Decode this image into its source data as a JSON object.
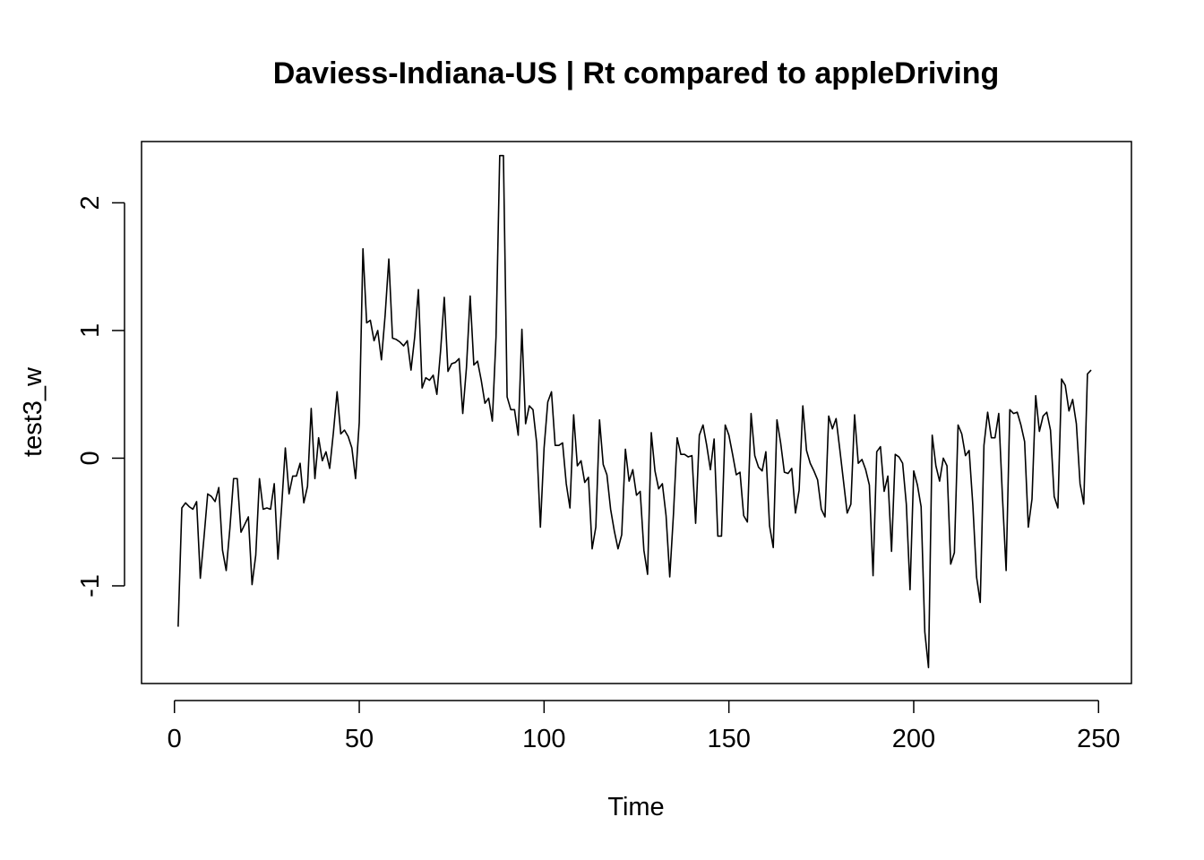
{
  "chart_data": {
    "type": "line",
    "title": "Daviess-Indiana-US | Rt compared to appleDriving",
    "xlabel": "Time",
    "ylabel": "test3_w",
    "xlim": [
      -8.9,
      258.9
    ],
    "ylim": [
      -1.765,
      2.48
    ],
    "xticks": [
      0,
      50,
      100,
      150,
      200,
      250
    ],
    "xtick_labels": [
      "0",
      "50",
      "100",
      "150",
      "200",
      "250"
    ],
    "yticks": [
      -1,
      0,
      1,
      2
    ],
    "ytick_labels": [
      "-1",
      "0",
      "1",
      "2"
    ],
    "grid": false,
    "line_color": "#000000",
    "series": [
      {
        "x_start": 1,
        "values": [
          -1.32,
          -0.39,
          -0.35,
          -0.38,
          -0.4,
          -0.34,
          -0.94,
          -0.62,
          -0.28,
          -0.3,
          -0.34,
          -0.23,
          -0.72,
          -0.88,
          -0.55,
          -0.16,
          -0.16,
          -0.58,
          -0.52,
          -0.46,
          -0.99,
          -0.76,
          -0.16,
          -0.4,
          -0.39,
          -0.4,
          -0.2,
          -0.79,
          -0.38,
          0.08,
          -0.28,
          -0.14,
          -0.14,
          -0.04,
          -0.35,
          -0.22,
          0.39,
          -0.16,
          0.16,
          -0.02,
          0.05,
          -0.08,
          0.2,
          0.52,
          0.19,
          0.22,
          0.17,
          0.08,
          -0.16,
          0.28,
          1.64,
          1.06,
          1.08,
          0.92,
          1.0,
          0.77,
          1.12,
          1.56,
          0.94,
          0.93,
          0.91,
          0.88,
          0.92,
          0.69,
          0.95,
          1.32,
          0.55,
          0.63,
          0.61,
          0.65,
          0.5,
          0.84,
          1.26,
          0.68,
          0.74,
          0.75,
          0.78,
          0.35,
          0.71,
          1.27,
          0.73,
          0.76,
          0.61,
          0.43,
          0.47,
          0.29,
          0.95,
          2.37,
          2.37,
          0.48,
          0.38,
          0.38,
          0.18,
          1.01,
          0.27,
          0.41,
          0.38,
          0.12,
          -0.54,
          0.08,
          0.44,
          0.52,
          0.1,
          0.1,
          0.12,
          -0.2,
          -0.39,
          0.34,
          -0.06,
          -0.02,
          -0.19,
          -0.15,
          -0.71,
          -0.54,
          0.3,
          -0.05,
          -0.13,
          -0.4,
          -0.57,
          -0.71,
          -0.6,
          0.07,
          -0.18,
          -0.09,
          -0.29,
          -0.26,
          -0.72,
          -0.91,
          0.2,
          -0.1,
          -0.24,
          -0.2,
          -0.45,
          -0.93,
          -0.44,
          0.16,
          0.03,
          0.03,
          0.01,
          0.02,
          -0.51,
          0.18,
          0.26,
          0.1,
          -0.09,
          0.15,
          -0.61,
          -0.61,
          0.26,
          0.18,
          0.03,
          -0.13,
          -0.11,
          -0.45,
          -0.5,
          0.35,
          0.02,
          -0.07,
          -0.1,
          0.05,
          -0.53,
          -0.7,
          0.3,
          0.12,
          -0.11,
          -0.12,
          -0.08,
          -0.43,
          -0.25,
          0.41,
          0.06,
          -0.04,
          -0.1,
          -0.17,
          -0.4,
          -0.46,
          0.33,
          0.23,
          0.31,
          0.07,
          -0.18,
          -0.43,
          -0.36,
          0.34,
          -0.04,
          -0.01,
          -0.09,
          -0.21,
          -0.92,
          0.05,
          0.09,
          -0.26,
          -0.14,
          -0.73,
          0.03,
          0.01,
          -0.04,
          -0.36,
          -1.03,
          -0.1,
          -0.21,
          -0.38,
          -1.36,
          -1.64,
          0.18,
          -0.06,
          -0.18,
          0.0,
          -0.06,
          -0.83,
          -0.74,
          0.26,
          0.19,
          0.02,
          0.06,
          -0.37,
          -0.93,
          -1.13,
          0.1,
          0.36,
          0.16,
          0.16,
          0.35,
          -0.3,
          -0.88,
          0.38,
          0.35,
          0.36,
          0.26,
          0.13,
          -0.54,
          -0.32,
          0.49,
          0.21,
          0.33,
          0.36,
          0.22,
          -0.3,
          -0.39,
          0.62,
          0.57,
          0.37,
          0.46,
          0.27,
          -0.2,
          -0.36,
          0.66,
          0.69
        ]
      }
    ]
  }
}
